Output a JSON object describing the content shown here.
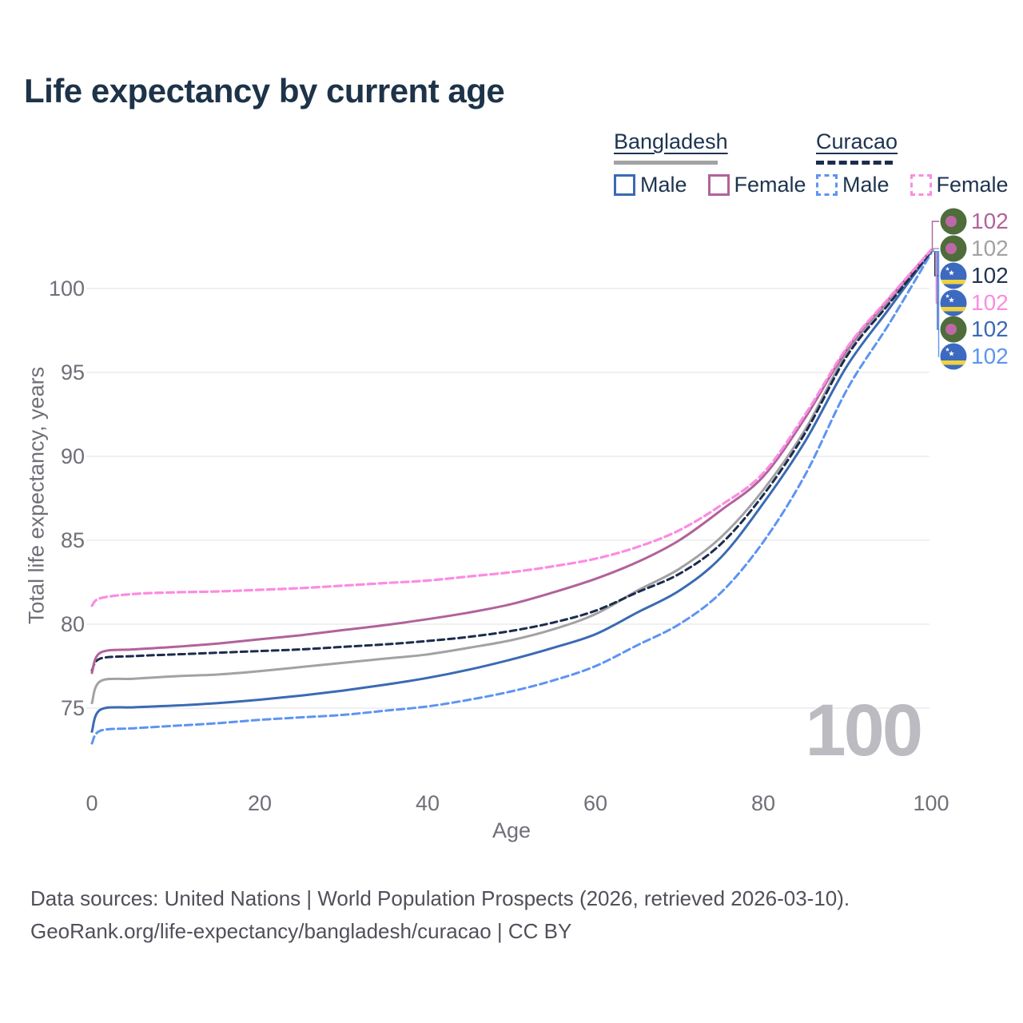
{
  "title": "Life expectancy by current age",
  "legend": {
    "groups": [
      {
        "country": "Bangladesh",
        "line_style": "solid",
        "bar_color": "#a2a2a4",
        "items": [
          {
            "label": "Male",
            "color": "#3a6ab3",
            "style": "solid"
          },
          {
            "label": "Female",
            "color": "#b1629a",
            "style": "solid"
          }
        ]
      },
      {
        "country": "Curacao",
        "line_style": "dashed",
        "bar_color": "#1c2c4d",
        "items": [
          {
            "label": "Male",
            "color": "#5d94f2",
            "style": "dashed"
          },
          {
            "label": "Female",
            "color": "#fb8ce1",
            "style": "dashed"
          }
        ]
      }
    ]
  },
  "watermark_age": "100",
  "footer": {
    "line1": "Data sources: United Nations | World Population Prospects (2026, retrieved 2026-03-10).",
    "line2": "GeoRank.org/life-expectancy/bangladesh/curacao | CC BY"
  },
  "chart_data": {
    "type": "line",
    "title": "Life expectancy by current age",
    "xlabel": "Age",
    "ylabel": "Total life expectancy, years",
    "xlim": [
      0,
      100
    ],
    "ylim": [
      72.5,
      103
    ],
    "xticks": [
      0,
      20,
      40,
      60,
      80,
      100
    ],
    "yticks": [
      75,
      80,
      85,
      90,
      95,
      100
    ],
    "grid": "horizontal-only",
    "legend_position": "top-right",
    "x": [
      0,
      1,
      5,
      10,
      15,
      20,
      25,
      30,
      35,
      40,
      45,
      50,
      55,
      60,
      65,
      70,
      75,
      80,
      85,
      90,
      95,
      100
    ],
    "series": [
      {
        "name": "Curacao Male",
        "country": "Curacao",
        "gender": "male",
        "style": "dashed",
        "color": "#5d94f2",
        "width": 3,
        "values": [
          72.9,
          73.65,
          73.8,
          73.95,
          74.1,
          74.3,
          74.45,
          74.6,
          74.85,
          75.1,
          75.5,
          76.0,
          76.65,
          77.5,
          78.75,
          80.0,
          81.9,
          84.9,
          88.9,
          94.0,
          97.9,
          102.1
        ]
      },
      {
        "name": "Bangladesh Male",
        "country": "Bangladesh",
        "gender": "male",
        "style": "solid",
        "color": "#3a6ab3",
        "width": 3,
        "values": [
          73.6,
          74.9,
          75.05,
          75.15,
          75.3,
          75.5,
          75.75,
          76.05,
          76.4,
          76.8,
          77.3,
          77.9,
          78.6,
          79.4,
          80.7,
          82.0,
          84.0,
          87.2,
          90.9,
          95.4,
          98.8,
          102.2
        ]
      },
      {
        "name": "Bangladesh Average",
        "country": "Bangladesh",
        "gender": "both",
        "style": "solid",
        "color": "#a2a2a4",
        "width": 3,
        "values": [
          75.3,
          76.6,
          76.75,
          76.9,
          77.0,
          77.2,
          77.45,
          77.7,
          77.95,
          78.2,
          78.6,
          79.05,
          79.7,
          80.6,
          82.0,
          83.3,
          85.2,
          88.0,
          91.6,
          96.2,
          99.2,
          102.25
        ]
      },
      {
        "name": "Curacao Average",
        "country": "Curacao",
        "gender": "both",
        "style": "dashed",
        "color": "#1c2c4d",
        "width": 3,
        "values": [
          77.25,
          77.95,
          78.1,
          78.2,
          78.3,
          78.4,
          78.5,
          78.65,
          78.8,
          79.0,
          79.25,
          79.6,
          80.1,
          80.8,
          81.9,
          83.0,
          84.8,
          87.7,
          91.4,
          96.0,
          99.1,
          102.2
        ]
      },
      {
        "name": "Bangladesh Female",
        "country": "Bangladesh",
        "gender": "female",
        "style": "solid",
        "color": "#b1629a",
        "width": 3,
        "values": [
          77.1,
          78.3,
          78.5,
          78.65,
          78.85,
          79.1,
          79.35,
          79.65,
          79.95,
          80.3,
          80.7,
          81.2,
          81.9,
          82.7,
          83.7,
          85.0,
          86.8,
          88.8,
          92.3,
          96.4,
          99.4,
          102.3
        ]
      },
      {
        "name": "Curacao Female",
        "country": "Curacao",
        "gender": "female",
        "style": "dashed",
        "color": "#fb8ce1",
        "width": 3.2,
        "values": [
          81.1,
          81.55,
          81.8,
          81.9,
          81.95,
          82.05,
          82.15,
          82.3,
          82.45,
          82.6,
          82.85,
          83.1,
          83.45,
          83.9,
          84.6,
          85.6,
          87.1,
          89.0,
          92.5,
          96.5,
          99.45,
          102.3
        ]
      }
    ],
    "end_labels": [
      {
        "value": "102",
        "series": "Bangladesh Female",
        "country": "Bangladesh",
        "color": "#b1629a"
      },
      {
        "value": "102",
        "series": "Bangladesh Average",
        "country": "Bangladesh",
        "color": "#a2a2a4"
      },
      {
        "value": "102",
        "series": "Curacao Average",
        "country": "Curacao",
        "color": "#1e3450"
      },
      {
        "value": "102",
        "series": "Curacao Female",
        "country": "Curacao",
        "color": "#fb8ce1"
      },
      {
        "value": "102",
        "series": "Bangladesh Male",
        "country": "Bangladesh",
        "color": "#3a6ab3"
      },
      {
        "value": "102",
        "series": "Curacao Male",
        "country": "Curacao",
        "color": "#5d94f2"
      }
    ],
    "flag_colors": {
      "bangladesh_green": "#4e6d3a",
      "bangladesh_dot": "#bf68a8",
      "curacao_blue": "#3c6ac0",
      "curacao_yellow": "#f0d23d",
      "curacao_star": "#ffffff"
    }
  }
}
